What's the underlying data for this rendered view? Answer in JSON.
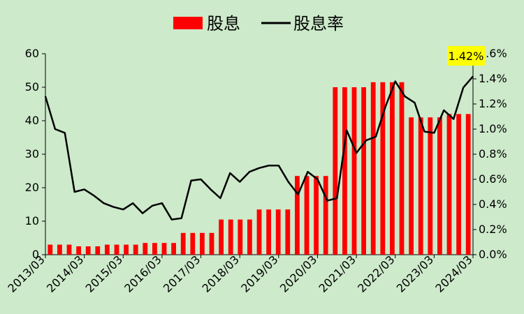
{
  "chart_data": {
    "type": "bar",
    "series": [
      {
        "name": "股息",
        "kind": "bar",
        "axis": "left",
        "color": "#ff0000",
        "values": [
          3,
          3,
          3,
          2.5,
          2.5,
          2.5,
          3,
          3,
          3,
          3,
          3.5,
          3.5,
          3.5,
          3.5,
          6.5,
          6.5,
          6.5,
          6.5,
          10.5,
          10.5,
          10.5,
          10.5,
          13.5,
          13.5,
          13.5,
          13.5,
          23.5,
          23.5,
          23.5,
          23.5,
          50,
          50,
          50,
          50,
          51.5,
          51.5,
          51.5,
          51.5,
          41,
          41,
          41,
          41,
          42,
          42,
          42
        ]
      },
      {
        "name": "股息率",
        "kind": "line",
        "axis": "right",
        "color": "#000000",
        "values": [
          1.26,
          1.0,
          0.97,
          0.5,
          0.52,
          0.47,
          0.41,
          0.38,
          0.36,
          0.41,
          0.33,
          0.39,
          0.41,
          0.28,
          0.29,
          0.59,
          0.6,
          0.52,
          0.45,
          0.65,
          0.58,
          0.66,
          0.69,
          0.71,
          0.71,
          0.58,
          0.48,
          0.66,
          0.6,
          0.43,
          0.45,
          0.99,
          0.81,
          0.91,
          0.94,
          1.18,
          1.38,
          1.26,
          1.21,
          0.98,
          0.97,
          1.15,
          1.08,
          1.33,
          1.42
        ]
      }
    ],
    "x_tick_labels": [
      "2013/03",
      "2014/03",
      "2015/03",
      "2016/03",
      "2017/03",
      "2018/03",
      "2019/03",
      "2020/03",
      "2021/03",
      "2022/03",
      "2023/03",
      "2024/03"
    ],
    "y_left": {
      "min": 0,
      "max": 60,
      "step": 10,
      "tick_labels": [
        "0",
        "10",
        "20",
        "30",
        "40",
        "50",
        "60"
      ]
    },
    "y_right": {
      "min": 0,
      "max": 1.6,
      "step": 0.2,
      "tick_labels": [
        "0.0%",
        "0.2%",
        "0.4%",
        "0.6%",
        "0.8%",
        "1.0%",
        "1.2%",
        "1.4%",
        "1.6%"
      ]
    },
    "legend": {
      "position": "top-center",
      "entries": [
        "股息",
        "股息率"
      ]
    },
    "annotation": {
      "text": "1.42%",
      "background": "#ffff00"
    },
    "grid": false,
    "colors": {
      "background": "#cdeacb"
    }
  }
}
